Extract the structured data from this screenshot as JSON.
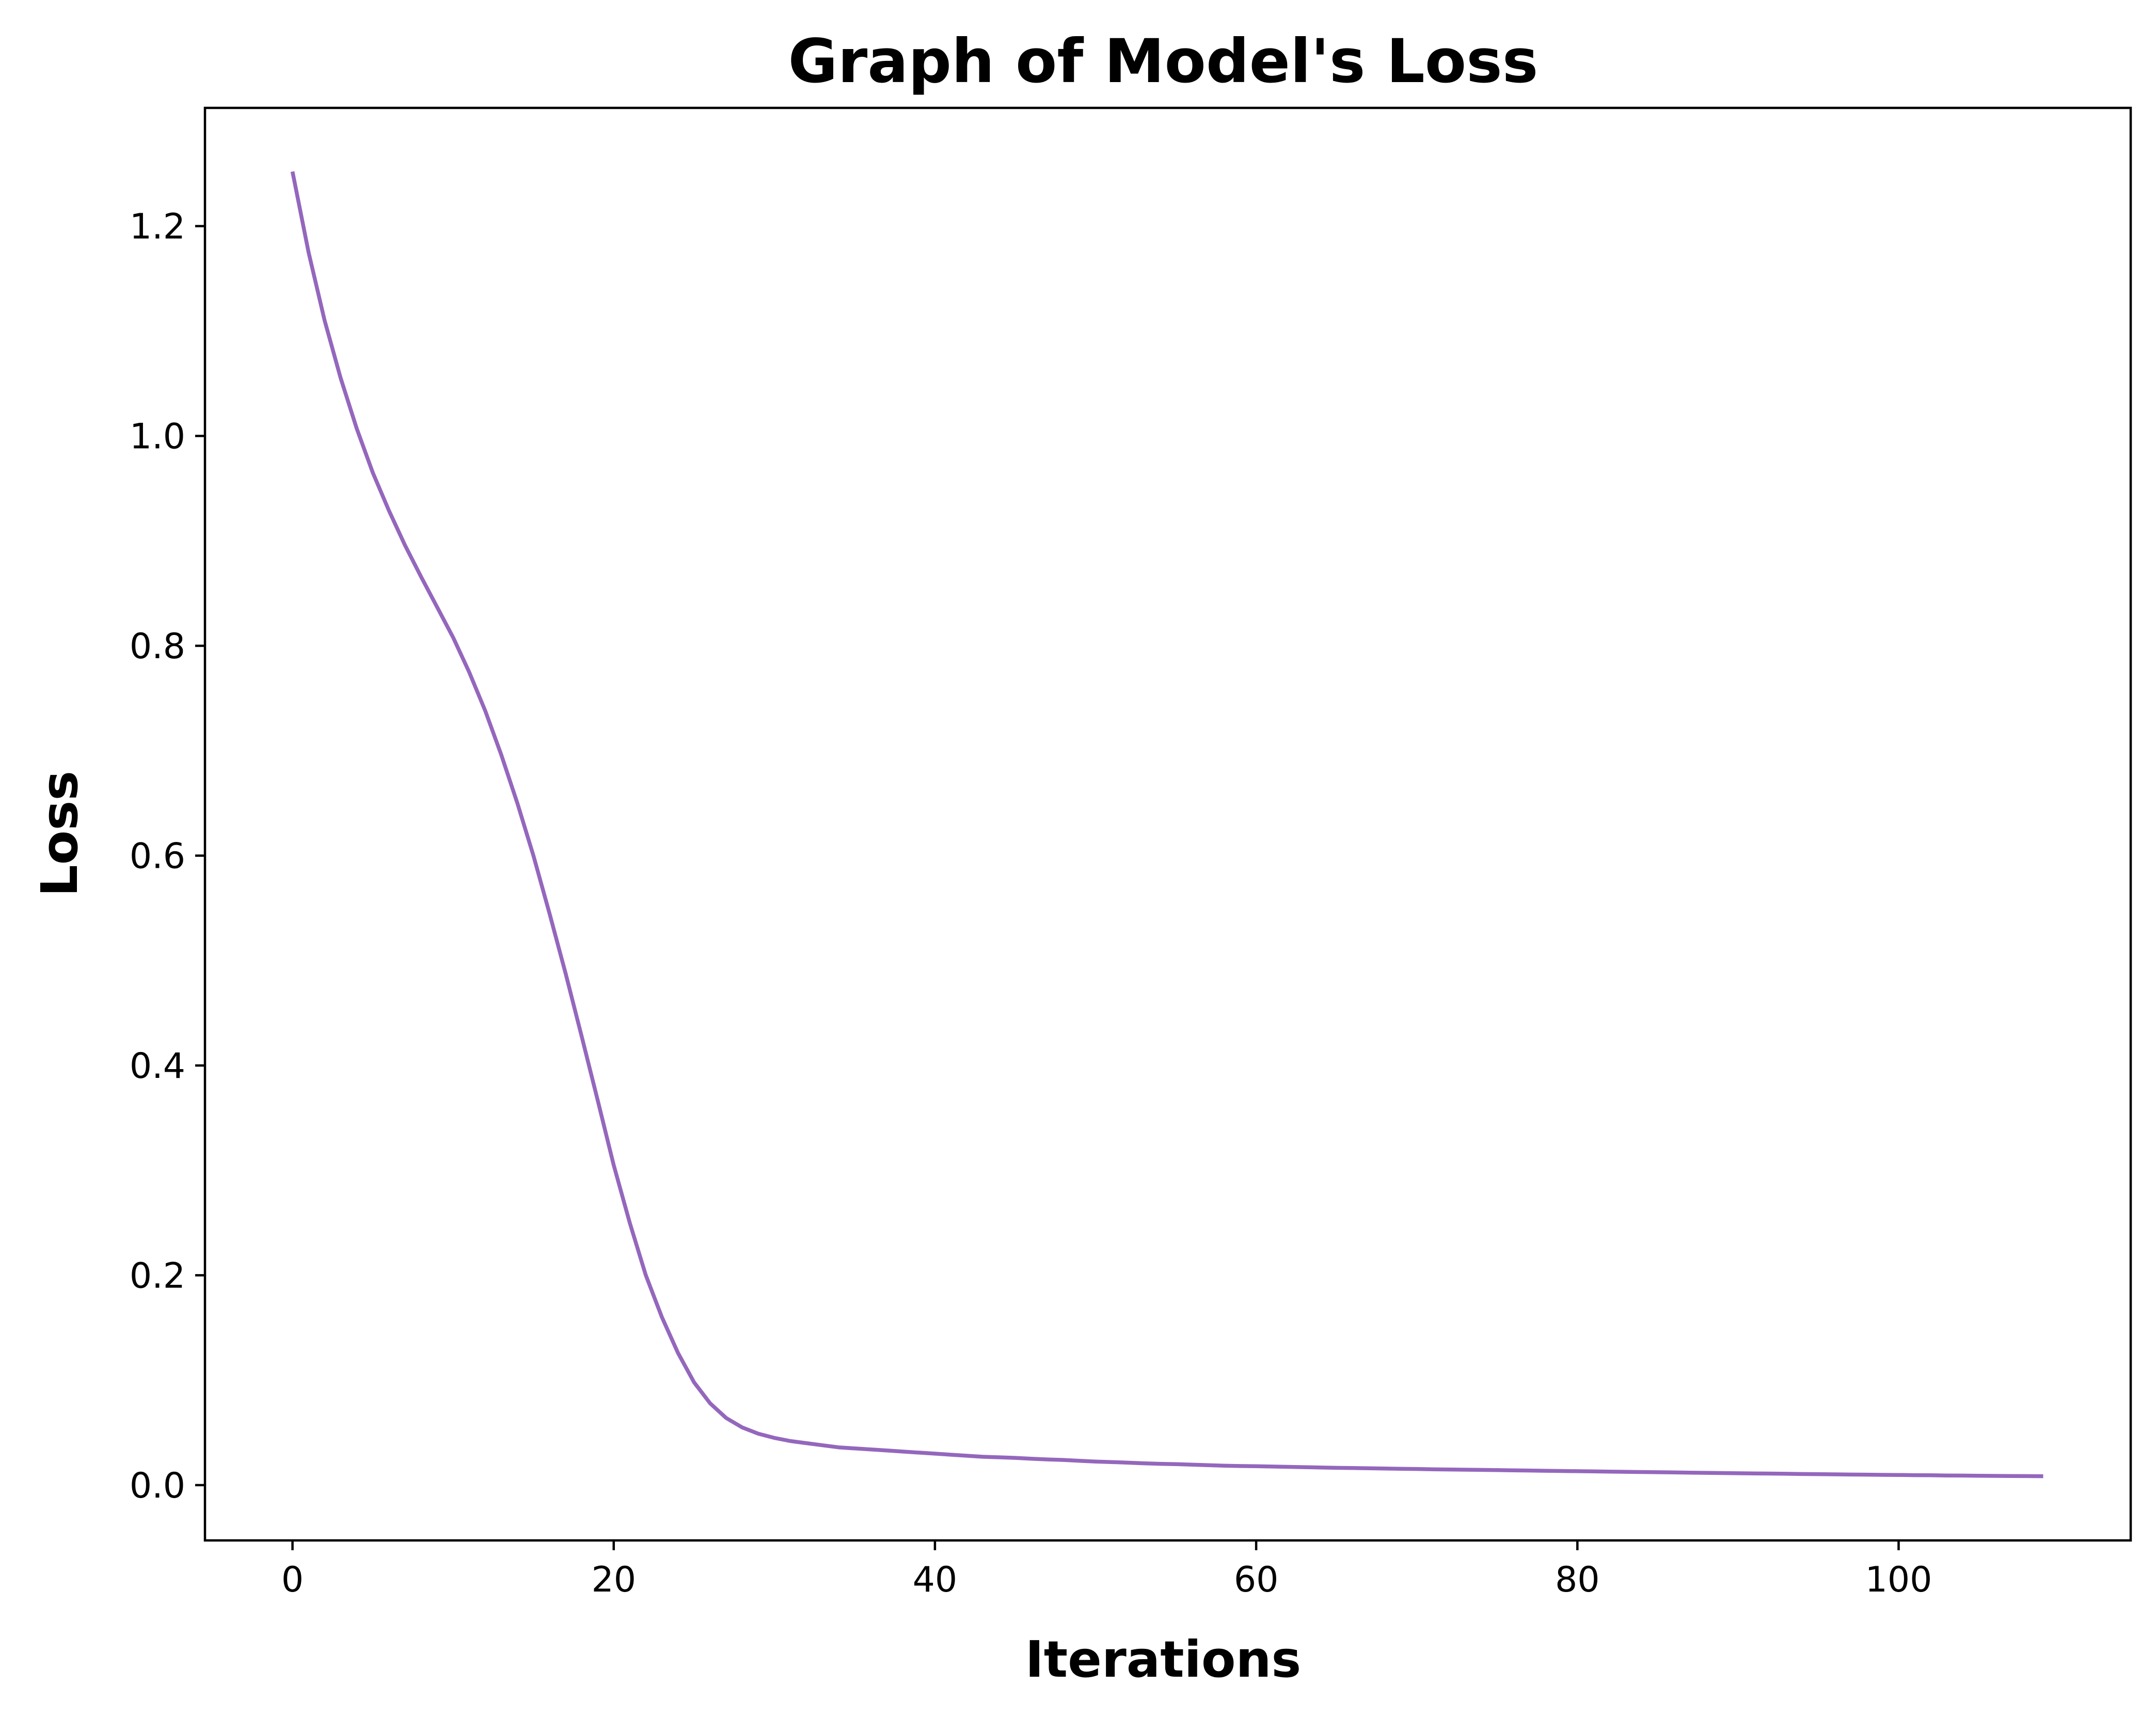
{
  "chart_data": {
    "type": "line",
    "title": "Graph of Model's Loss",
    "xlabel": "Iterations",
    "ylabel": "Loss",
    "xlim": [
      -5.45,
      114.45
    ],
    "ylim": [
      -0.0527,
      1.3127
    ],
    "xticks": [
      0,
      20,
      40,
      60,
      80,
      100
    ],
    "yticks": [
      0.0,
      0.2,
      0.4,
      0.6,
      0.8,
      1.0,
      1.2
    ],
    "xtick_labels": [
      "0",
      "20",
      "40",
      "60",
      "80",
      "100"
    ],
    "ytick_labels": [
      "0.0",
      "0.2",
      "0.4",
      "0.6",
      "0.8",
      "1.0",
      "1.2"
    ],
    "grid": false,
    "series": [
      {
        "color": "#9467bd",
        "x": [
          0,
          1,
          2,
          3,
          4,
          5,
          6,
          7,
          8,
          9,
          10,
          11,
          12,
          13,
          14,
          15,
          16,
          17,
          18,
          19,
          20,
          21,
          22,
          23,
          24,
          25,
          26,
          27,
          28,
          29,
          30,
          31,
          32,
          33,
          34,
          35,
          36,
          37,
          38,
          39,
          40,
          41,
          42,
          43,
          44,
          45,
          46,
          47,
          48,
          49,
          50,
          51,
          52,
          53,
          54,
          55,
          56,
          57,
          58,
          59,
          60,
          61,
          62,
          63,
          64,
          65,
          66,
          67,
          68,
          69,
          70,
          71,
          72,
          73,
          74,
          75,
          76,
          77,
          78,
          79,
          80,
          81,
          82,
          83,
          84,
          85,
          86,
          87,
          88,
          89,
          90,
          91,
          92,
          93,
          94,
          95,
          96,
          97,
          98,
          99,
          100,
          101,
          102,
          103,
          104,
          105,
          106,
          107,
          108,
          109
        ],
        "y": [
          1.252,
          1.175,
          1.11,
          1.055,
          1.007,
          0.965,
          0.929,
          0.896,
          0.866,
          0.837,
          0.808,
          0.775,
          0.738,
          0.696,
          0.65,
          0.6,
          0.545,
          0.488,
          0.428,
          0.367,
          0.305,
          0.25,
          0.2,
          0.16,
          0.126,
          0.098,
          0.078,
          0.064,
          0.055,
          0.049,
          0.045,
          0.042,
          0.04,
          0.038,
          0.036,
          0.035,
          0.034,
          0.033,
          0.032,
          0.031,
          0.03,
          0.029,
          0.028,
          0.027,
          0.0265,
          0.026,
          0.0252,
          0.0245,
          0.024,
          0.0232,
          0.0225,
          0.022,
          0.0214,
          0.0208,
          0.0203,
          0.02,
          0.0195,
          0.019,
          0.0185,
          0.0182,
          0.018,
          0.0177,
          0.0174,
          0.0171,
          0.0168,
          0.0165,
          0.0163,
          0.0161,
          0.0158,
          0.0156,
          0.0154,
          0.0151,
          0.0149,
          0.0147,
          0.0145,
          0.0143,
          0.0141,
          0.0139,
          0.0137,
          0.0135,
          0.0133,
          0.0131,
          0.0129,
          0.0127,
          0.0125,
          0.0123,
          0.0121,
          0.0119,
          0.0117,
          0.0115,
          0.0113,
          0.0111,
          0.011,
          0.0108,
          0.0106,
          0.0105,
          0.0103,
          0.0101,
          0.01,
          0.0098,
          0.0097,
          0.0095,
          0.0094,
          0.0092,
          0.0091,
          0.0089,
          0.0088,
          0.0087,
          0.0086,
          0.0085
        ]
      }
    ]
  }
}
